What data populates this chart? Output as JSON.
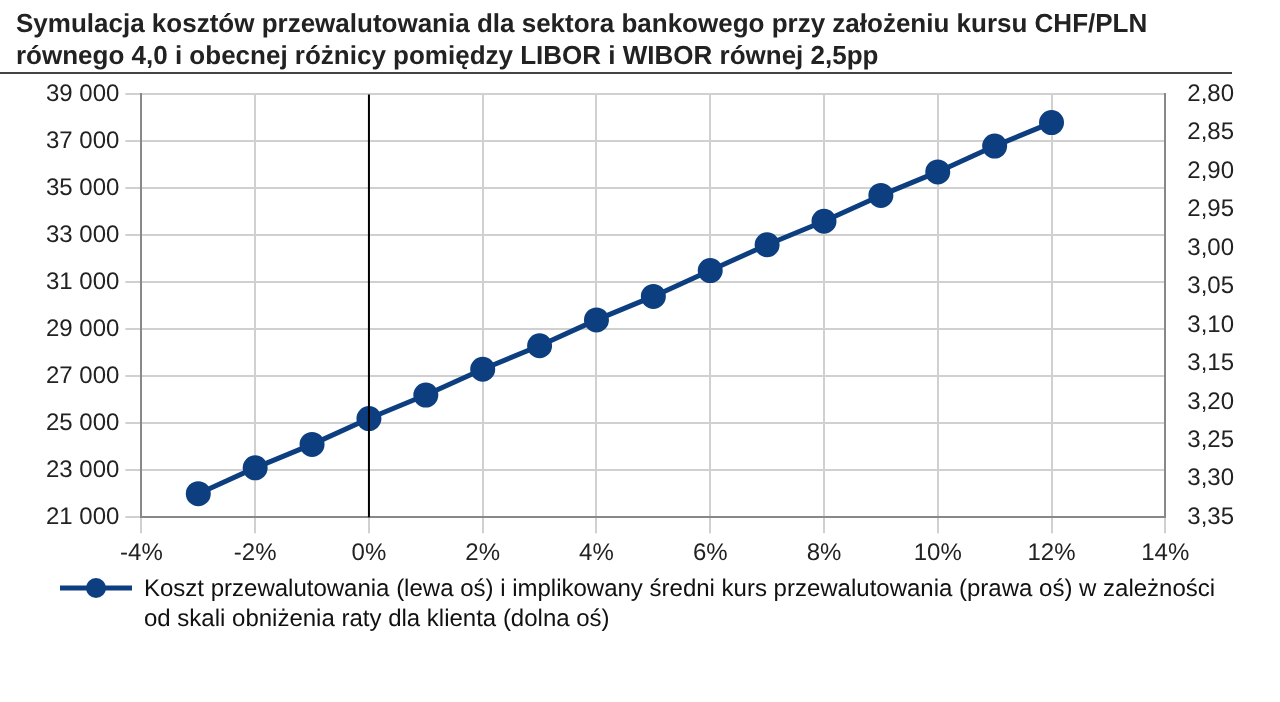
{
  "chart_data": {
    "type": "line",
    "title": "Symulacja kosztów przewalutowania dla sektora bankowego przy założeniu kursu CHF/PLN równego 4,0 i obecnej różnicy pomiędzy LIBOR i WIBOR równej 2,5pp",
    "x": [
      -3,
      -2,
      -1,
      0,
      1,
      2,
      3,
      4,
      5,
      6,
      7,
      8,
      9,
      10,
      11,
      12
    ],
    "series": [
      {
        "name": "Koszt przewalutowania (lewa oś) i implikowany średni kurs przewalutowania (prawa oś) w zależności od skali obniżenia raty dla klienta (dolna oś)",
        "color": "#0d3f80",
        "values": [
          22000,
          23100,
          24100,
          25200,
          26200,
          27300,
          28300,
          29400,
          30400,
          31500,
          32600,
          33600,
          34700,
          35700,
          36800,
          37800
        ]
      }
    ],
    "xlim": [
      -4,
      14
    ],
    "xticks": [
      {
        "value": -4,
        "label": "-4%"
      },
      {
        "value": -2,
        "label": "-2%"
      },
      {
        "value": 0,
        "label": "0%"
      },
      {
        "value": 2,
        "label": "2%"
      },
      {
        "value": 4,
        "label": "4%"
      },
      {
        "value": 6,
        "label": "6%"
      },
      {
        "value": 8,
        "label": "8%"
      },
      {
        "value": 10,
        "label": "10%"
      },
      {
        "value": 12,
        "label": "12%"
      },
      {
        "value": 14,
        "label": "14%"
      }
    ],
    "ylim": [
      21000,
      39000
    ],
    "yticks": [
      {
        "value": 21000,
        "label": "21 000"
      },
      {
        "value": 23000,
        "label": "23 000"
      },
      {
        "value": 25000,
        "label": "25 000"
      },
      {
        "value": 27000,
        "label": "27 000"
      },
      {
        "value": 29000,
        "label": "29 000"
      },
      {
        "value": 31000,
        "label": "31 000"
      },
      {
        "value": 33000,
        "label": "33 000"
      },
      {
        "value": 35000,
        "label": "35 000"
      },
      {
        "value": 37000,
        "label": "37 000"
      },
      {
        "value": 39000,
        "label": "39 000"
      }
    ],
    "y2lim": [
      3.35,
      2.8
    ],
    "y2ticks": [
      {
        "value": 2.8,
        "label": "2,80"
      },
      {
        "value": 2.85,
        "label": "2,85"
      },
      {
        "value": 2.9,
        "label": "2,90"
      },
      {
        "value": 2.95,
        "label": "2,95"
      },
      {
        "value": 3.0,
        "label": "3,00"
      },
      {
        "value": 3.05,
        "label": "3,05"
      },
      {
        "value": 3.1,
        "label": "3,10"
      },
      {
        "value": 3.15,
        "label": "3,15"
      },
      {
        "value": 3.2,
        "label": "3,20"
      },
      {
        "value": 3.25,
        "label": "3,25"
      },
      {
        "value": 3.3,
        "label": "3,30"
      },
      {
        "value": 3.35,
        "label": "3,35"
      }
    ],
    "ref_lines": [
      {
        "axis": "x",
        "value": 0,
        "color": "#000000"
      }
    ],
    "grid": true,
    "legend": "bottom",
    "marker": "circle",
    "line_style": "solid"
  }
}
